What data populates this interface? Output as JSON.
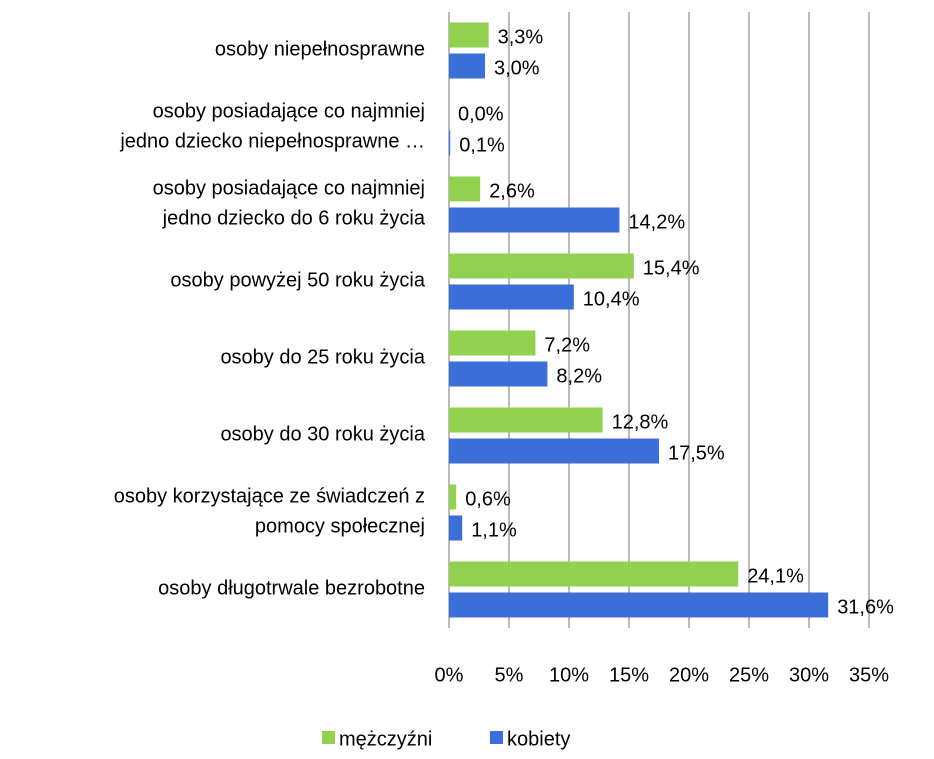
{
  "chart_data": {
    "type": "hbar",
    "categories": [
      [
        "osoby niepełnosprawne"
      ],
      [
        "osoby posiadające co najmniej",
        "jedno dziecko niepełnosprawne …"
      ],
      [
        "osoby posiadające co najmniej",
        "jedno dziecko do 6 roku życia"
      ],
      [
        "osoby powyżej 50 roku życia"
      ],
      [
        "osoby do 25 roku życia"
      ],
      [
        "osoby do 30 roku życia"
      ],
      [
        "osoby korzystające ze świadczeń z",
        "pomocy społecznej"
      ],
      [
        "osoby długotrwale bezrobotne"
      ]
    ],
    "series": [
      {
        "name": "mężczyźni",
        "color": "#92d050",
        "values": [
          3.3,
          0.0,
          2.6,
          15.4,
          7.2,
          12.8,
          0.6,
          24.1
        ],
        "value_labels": [
          "3,3%",
          "0,0%",
          "2,6%",
          "15,4%",
          "7,2%",
          "12,8%",
          "0,6%",
          "24,1%"
        ]
      },
      {
        "name": "kobiety",
        "color": "#3b6ed6",
        "values": [
          3.0,
          0.1,
          14.2,
          10.4,
          8.2,
          17.5,
          1.1,
          31.6
        ],
        "value_labels": [
          "3,0%",
          "0,1%",
          "14,2%",
          "10,4%",
          "8,2%",
          "17,5%",
          "1,1%",
          "31,6%"
        ]
      }
    ],
    "xlim": [
      0,
      35
    ],
    "xticks": [
      {
        "value": 0,
        "label": "0%"
      },
      {
        "value": 5,
        "label": "5%"
      },
      {
        "value": 10,
        "label": "10%"
      },
      {
        "value": 15,
        "label": "15%"
      },
      {
        "value": 20,
        "label": "20%"
      },
      {
        "value": 25,
        "label": "25%"
      },
      {
        "value": 30,
        "label": "30%"
      },
      {
        "value": 35,
        "label": "35%"
      }
    ],
    "grid": true,
    "legend": "bottom"
  }
}
